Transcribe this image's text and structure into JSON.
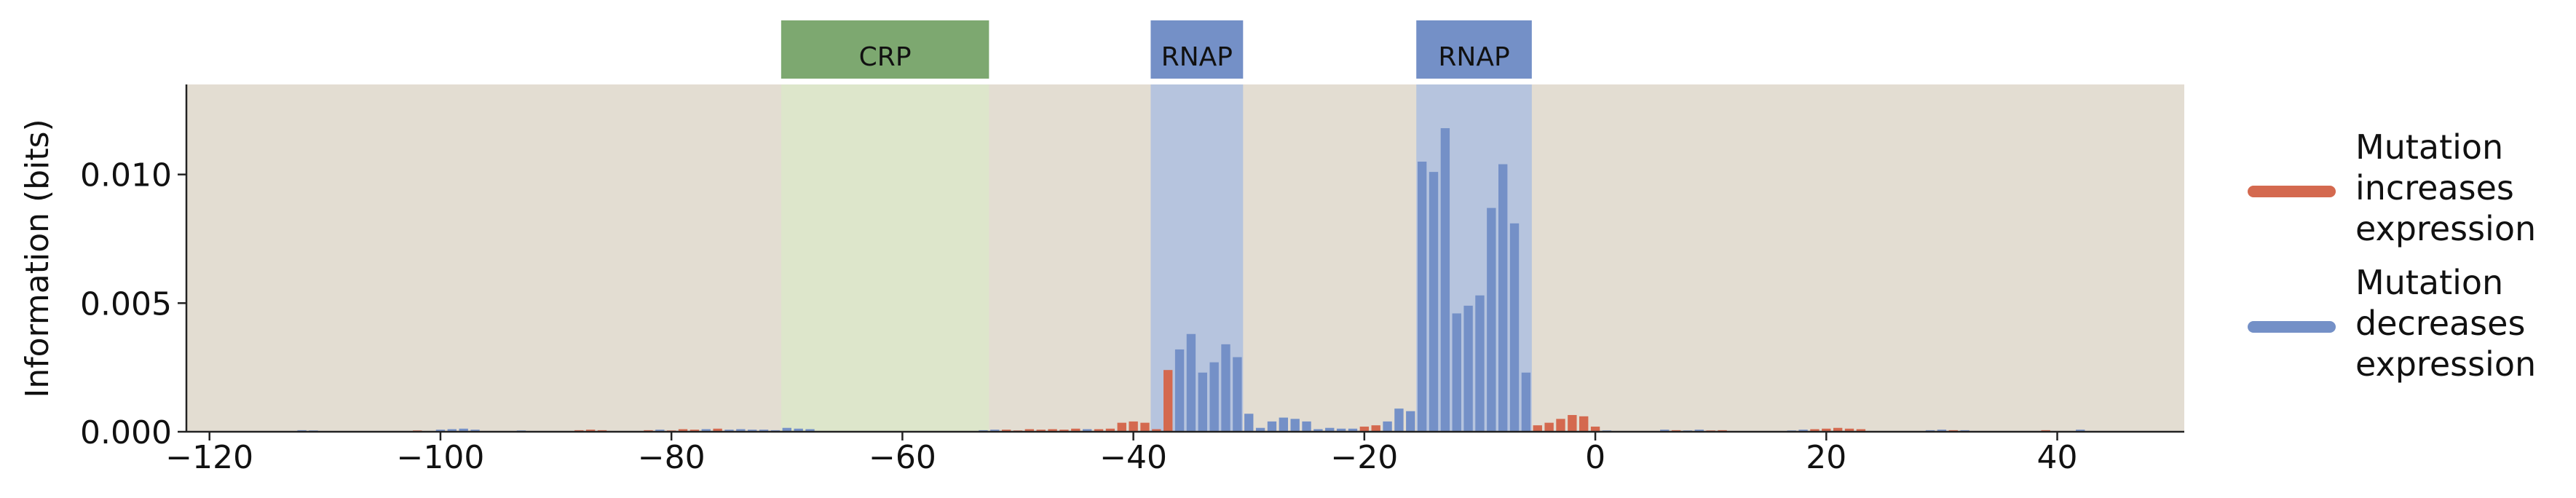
{
  "chart_data": {
    "type": "bar",
    "ylabel": "Information (bits)",
    "xlabel": "",
    "xlim": [
      -122,
      51
    ],
    "ylim": [
      0,
      0.0135
    ],
    "x_ticks": [
      -120,
      -100,
      -80,
      -60,
      -40,
      -20,
      0,
      20,
      40
    ],
    "x_tick_labels": [
      "−120",
      "−100",
      "−80",
      "−60",
      "−40",
      "−20",
      "0",
      "20",
      "40"
    ],
    "y_ticks": [
      0.0,
      0.005,
      0.01
    ],
    "y_tick_labels": [
      "0.000",
      "0.005",
      "0.010"
    ],
    "grid": false,
    "legend_position": "right",
    "colors": {
      "background": "#e3ddd2",
      "increase": "#d4694f",
      "decrease": "#7490c7",
      "crp_region": "#dde6cb",
      "crp_header": "#7da870",
      "rnap_region": "#b6c4de",
      "rnap_header": "#7490c7"
    },
    "regions": [
      {
        "label": "CRP",
        "start": -70,
        "end": -52,
        "kind": "crp"
      },
      {
        "label": "RNAP",
        "start": -38,
        "end": -30,
        "kind": "rnap"
      },
      {
        "label": "RNAP",
        "start": -15,
        "end": -5,
        "kind": "rnap"
      }
    ],
    "series": [
      {
        "name": "Mutation increases expression",
        "color_key": "increase"
      },
      {
        "name": "Mutation decreases expression",
        "color_key": "decrease"
      }
    ],
    "legend": [
      {
        "label": "Mutation increases expression",
        "lines": [
          "Mutation",
          "increases",
          "expression"
        ],
        "color_key": "increase"
      },
      {
        "label": "Mutation decreases expression",
        "lines": [
          "Mutation",
          "decreases",
          "expression"
        ],
        "color_key": "decrease"
      }
    ],
    "bars": [
      {
        "x": -112,
        "value": 6e-05,
        "effect": "decrease"
      },
      {
        "x": -111,
        "value": 5e-05,
        "effect": "decrease"
      },
      {
        "x": -102,
        "value": 5e-05,
        "effect": "increase"
      },
      {
        "x": -100,
        "value": 8e-05,
        "effect": "decrease"
      },
      {
        "x": -99,
        "value": 0.0001,
        "effect": "decrease"
      },
      {
        "x": -98,
        "value": 0.00012,
        "effect": "decrease"
      },
      {
        "x": -97,
        "value": 8e-05,
        "effect": "decrease"
      },
      {
        "x": -93,
        "value": 5e-05,
        "effect": "decrease"
      },
      {
        "x": -88,
        "value": 6e-05,
        "effect": "increase"
      },
      {
        "x": -87,
        "value": 8e-05,
        "effect": "increase"
      },
      {
        "x": -86,
        "value": 6e-05,
        "effect": "increase"
      },
      {
        "x": -82,
        "value": 6e-05,
        "effect": "increase"
      },
      {
        "x": -81,
        "value": 8e-05,
        "effect": "decrease"
      },
      {
        "x": -80,
        "value": 5e-05,
        "effect": "increase"
      },
      {
        "x": -79,
        "value": 0.0001,
        "effect": "increase"
      },
      {
        "x": -78,
        "value": 8e-05,
        "effect": "increase"
      },
      {
        "x": -77,
        "value": 0.0001,
        "effect": "decrease"
      },
      {
        "x": -76,
        "value": 0.00012,
        "effect": "increase"
      },
      {
        "x": -75,
        "value": 8e-05,
        "effect": "decrease"
      },
      {
        "x": -74,
        "value": 0.0001,
        "effect": "decrease"
      },
      {
        "x": -73,
        "value": 8e-05,
        "effect": "decrease"
      },
      {
        "x": -72,
        "value": 8e-05,
        "effect": "decrease"
      },
      {
        "x": -71,
        "value": 6e-05,
        "effect": "decrease"
      },
      {
        "x": -70,
        "value": 0.00015,
        "effect": "decrease"
      },
      {
        "x": -69,
        "value": 0.00012,
        "effect": "decrease"
      },
      {
        "x": -68,
        "value": 0.0001,
        "effect": "decrease"
      },
      {
        "x": -53,
        "value": 6e-05,
        "effect": "decrease"
      },
      {
        "x": -52,
        "value": 8e-05,
        "effect": "decrease"
      },
      {
        "x": -51,
        "value": 8e-05,
        "effect": "increase"
      },
      {
        "x": -50,
        "value": 5e-05,
        "effect": "increase"
      },
      {
        "x": -49,
        "value": 0.0001,
        "effect": "increase"
      },
      {
        "x": -48,
        "value": 8e-05,
        "effect": "increase"
      },
      {
        "x": -47,
        "value": 0.0001,
        "effect": "increase"
      },
      {
        "x": -46,
        "value": 8e-05,
        "effect": "increase"
      },
      {
        "x": -45,
        "value": 0.00012,
        "effect": "increase"
      },
      {
        "x": -44,
        "value": 0.0001,
        "effect": "decrease"
      },
      {
        "x": -43,
        "value": 0.0001,
        "effect": "increase"
      },
      {
        "x": -42,
        "value": 0.00012,
        "effect": "increase"
      },
      {
        "x": -41,
        "value": 0.00035,
        "effect": "increase"
      },
      {
        "x": -40,
        "value": 0.0004,
        "effect": "increase"
      },
      {
        "x": -39,
        "value": 0.00035,
        "effect": "increase"
      },
      {
        "x": -38,
        "value": 0.0001,
        "effect": "increase"
      },
      {
        "x": -37,
        "value": 0.0024,
        "effect": "increase"
      },
      {
        "x": -36,
        "value": 0.0032,
        "effect": "decrease"
      },
      {
        "x": -35,
        "value": 0.0038,
        "effect": "decrease"
      },
      {
        "x": -34,
        "value": 0.0023,
        "effect": "decrease"
      },
      {
        "x": -33,
        "value": 0.0027,
        "effect": "decrease"
      },
      {
        "x": -32,
        "value": 0.0034,
        "effect": "decrease"
      },
      {
        "x": -31,
        "value": 0.0029,
        "effect": "decrease"
      },
      {
        "x": -30,
        "value": 0.0007,
        "effect": "decrease"
      },
      {
        "x": -29,
        "value": 0.00015,
        "effect": "decrease"
      },
      {
        "x": -28,
        "value": 0.0004,
        "effect": "decrease"
      },
      {
        "x": -27,
        "value": 0.00055,
        "effect": "decrease"
      },
      {
        "x": -26,
        "value": 0.0005,
        "effect": "decrease"
      },
      {
        "x": -25,
        "value": 0.0004,
        "effect": "decrease"
      },
      {
        "x": -24,
        "value": 0.0001,
        "effect": "decrease"
      },
      {
        "x": -23,
        "value": 0.00015,
        "effect": "decrease"
      },
      {
        "x": -22,
        "value": 0.00012,
        "effect": "decrease"
      },
      {
        "x": -21,
        "value": 0.00012,
        "effect": "decrease"
      },
      {
        "x": -20,
        "value": 0.0002,
        "effect": "increase"
      },
      {
        "x": -19,
        "value": 0.00025,
        "effect": "increase"
      },
      {
        "x": -18,
        "value": 0.0004,
        "effect": "decrease"
      },
      {
        "x": -17,
        "value": 0.0009,
        "effect": "decrease"
      },
      {
        "x": -16,
        "value": 0.0008,
        "effect": "decrease"
      },
      {
        "x": -15,
        "value": 0.0105,
        "effect": "decrease"
      },
      {
        "x": -14,
        "value": 0.0101,
        "effect": "decrease"
      },
      {
        "x": -13,
        "value": 0.0118,
        "effect": "decrease"
      },
      {
        "x": -12,
        "value": 0.0046,
        "effect": "decrease"
      },
      {
        "x": -11,
        "value": 0.0049,
        "effect": "decrease"
      },
      {
        "x": -10,
        "value": 0.0053,
        "effect": "decrease"
      },
      {
        "x": -9,
        "value": 0.0087,
        "effect": "decrease"
      },
      {
        "x": -8,
        "value": 0.0104,
        "effect": "decrease"
      },
      {
        "x": -7,
        "value": 0.0081,
        "effect": "decrease"
      },
      {
        "x": -6,
        "value": 0.0023,
        "effect": "decrease"
      },
      {
        "x": -5,
        "value": 0.00025,
        "effect": "increase"
      },
      {
        "x": -4,
        "value": 0.00035,
        "effect": "increase"
      },
      {
        "x": -3,
        "value": 0.0005,
        "effect": "increase"
      },
      {
        "x": -2,
        "value": 0.00065,
        "effect": "increase"
      },
      {
        "x": -1,
        "value": 0.0006,
        "effect": "increase"
      },
      {
        "x": 0,
        "value": 0.0002,
        "effect": "increase"
      },
      {
        "x": 1,
        "value": 5e-05,
        "effect": "decrease"
      },
      {
        "x": 6,
        "value": 8e-05,
        "effect": "decrease"
      },
      {
        "x": 7,
        "value": 6e-05,
        "effect": "increase"
      },
      {
        "x": 8,
        "value": 5e-05,
        "effect": "decrease"
      },
      {
        "x": 9,
        "value": 8e-05,
        "effect": "decrease"
      },
      {
        "x": 10,
        "value": 5e-05,
        "effect": "increase"
      },
      {
        "x": 11,
        "value": 6e-05,
        "effect": "increase"
      },
      {
        "x": 17,
        "value": 5e-05,
        "effect": "decrease"
      },
      {
        "x": 18,
        "value": 8e-05,
        "effect": "decrease"
      },
      {
        "x": 19,
        "value": 0.0001,
        "effect": "increase"
      },
      {
        "x": 20,
        "value": 0.00012,
        "effect": "increase"
      },
      {
        "x": 21,
        "value": 0.00015,
        "effect": "increase"
      },
      {
        "x": 22,
        "value": 0.00012,
        "effect": "increase"
      },
      {
        "x": 23,
        "value": 0.0001,
        "effect": "increase"
      },
      {
        "x": 29,
        "value": 6e-05,
        "effect": "decrease"
      },
      {
        "x": 30,
        "value": 8e-05,
        "effect": "decrease"
      },
      {
        "x": 31,
        "value": 6e-05,
        "effect": "increase"
      },
      {
        "x": 32,
        "value": 6e-05,
        "effect": "decrease"
      },
      {
        "x": 39,
        "value": 6e-05,
        "effect": "increase"
      },
      {
        "x": 42,
        "value": 8e-05,
        "effect": "decrease"
      }
    ]
  }
}
